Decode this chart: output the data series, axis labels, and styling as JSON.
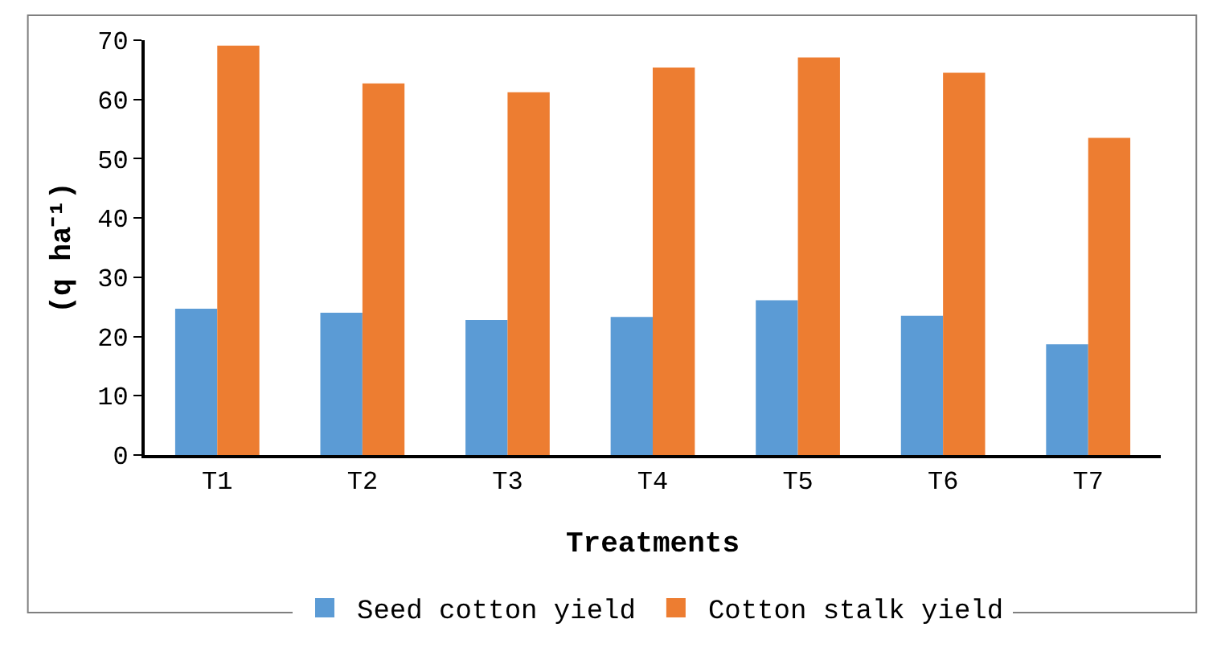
{
  "chart_data": {
    "type": "bar",
    "xlabel": "Treatments",
    "ylabel": "(q ha⁻¹)",
    "categories": [
      "T1",
      "T2",
      "T3",
      "T4",
      "T5",
      "T6",
      "T7"
    ],
    "series": [
      {
        "name": "Seed cotton yield",
        "color": "#5b9bd5",
        "values": [
          24.7,
          24.0,
          22.8,
          23.3,
          26.1,
          23.5,
          18.7
        ]
      },
      {
        "name": "Cotton stalk yield",
        "color": "#ed7d31",
        "values": [
          69.1,
          62.7,
          61.2,
          65.4,
          67.1,
          64.5,
          53.5
        ]
      }
    ],
    "ylim": [
      0,
      70
    ],
    "yticks": [
      0,
      10,
      20,
      30,
      40,
      50,
      60,
      70
    ],
    "grid": false,
    "legend": "bottom"
  }
}
